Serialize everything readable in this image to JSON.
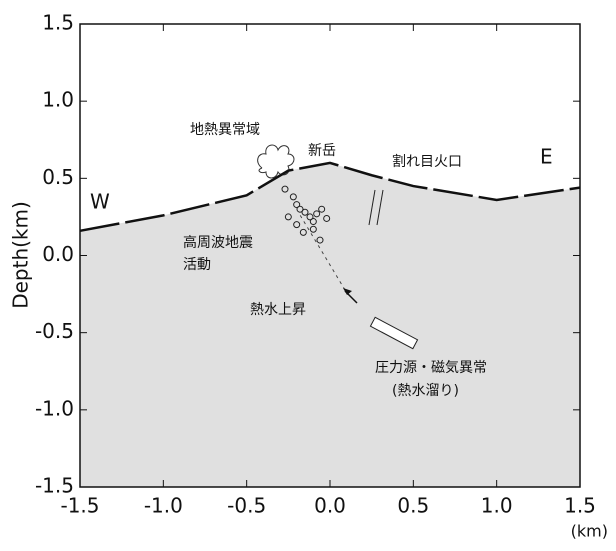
{
  "chart_data": {
    "type": "cross-section",
    "ylabel": "Depth(km)",
    "xunit": "(km)",
    "xlim": [
      -1.5,
      1.5
    ],
    "ylim": [
      -1.5,
      1.5
    ],
    "xticks": [
      -1.5,
      {
        "value": -1,
        "label": "-1.0"
      },
      -0.5,
      {
        "value": 0,
        "label": "0.0"
      },
      0.5,
      {
        "value": 1,
        "label": "1.0"
      },
      1.5
    ],
    "yticks": [
      1.5,
      {
        "value": 1,
        "label": "1.0"
      },
      0.5,
      {
        "value": 0,
        "label": "0.0"
      },
      -0.5,
      {
        "value": -1,
        "label": "-1.0"
      },
      -1.5
    ],
    "surface": {
      "x": [
        -1.5,
        -1.0,
        -0.5,
        -0.25,
        0.0,
        0.25,
        0.5,
        1.0,
        1.5
      ],
      "y": [
        0.16,
        0.26,
        0.39,
        0.55,
        0.6,
        0.52,
        0.45,
        0.36,
        0.44
      ]
    },
    "fill_color": "#e0e0e0",
    "hypocenters": {
      "x": [
        -0.27,
        -0.22,
        -0.2,
        -0.18,
        -0.15,
        -0.12,
        -0.1,
        -0.08,
        -0.05,
        -0.02,
        -0.2,
        -0.16,
        -0.1,
        -0.25,
        -0.06
      ],
      "y": [
        0.43,
        0.38,
        0.33,
        0.3,
        0.28,
        0.25,
        0.22,
        0.27,
        0.3,
        0.24,
        0.2,
        0.15,
        0.17,
        0.25,
        0.1
      ]
    },
    "annotations": [
      "地熱異常域",
      "新岳",
      "割れ目火口",
      "W",
      "E",
      "高周波地震",
      "活動",
      "熱水上昇",
      "圧力源・磁気異常",
      "(熱水溜り)"
    ]
  }
}
